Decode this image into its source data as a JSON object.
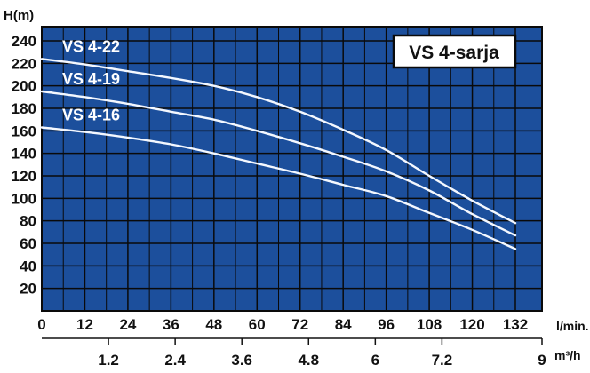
{
  "chart_data": {
    "type": "line",
    "title": "VS 4-sarja",
    "ylabel": "H(m)",
    "xlabel": "l/min.",
    "x2label": "m³/h",
    "ylim": [
      0,
      240
    ],
    "xlim": [
      0,
      132
    ],
    "x2lim": [
      0,
      9
    ],
    "grid": true,
    "y_ticks": [
      "20",
      "40",
      "60",
      "80",
      "100",
      "120",
      "140",
      "160",
      "180",
      "200",
      "220",
      "240"
    ],
    "y_tick_values": [
      20,
      40,
      60,
      80,
      100,
      120,
      140,
      160,
      180,
      200,
      220,
      240
    ],
    "x_ticks": [
      "0",
      "12",
      "24",
      "36",
      "48",
      "60",
      "72",
      "84",
      "96",
      "108",
      "120",
      "132"
    ],
    "x_tick_values": [
      0,
      12,
      24,
      36,
      48,
      60,
      72,
      84,
      96,
      108,
      120,
      132
    ],
    "x2_ticks": [
      "1.2",
      "2.4",
      "3.6",
      "4.8",
      "6",
      "7.2",
      "9"
    ],
    "x2_tick_values": [
      1.2,
      2.4,
      3.6,
      4.8,
      6,
      7.2,
      9
    ],
    "colors": {
      "plot_background": "#1c4f9c",
      "grid": "#0a0a0a",
      "lines": "#f4f8ff",
      "title_box": "#ffffff"
    },
    "series": [
      {
        "name": "VS 4-22",
        "x": [
          0,
          12,
          24,
          36,
          48,
          60,
          72,
          84,
          96,
          108,
          120,
          132
        ],
        "y": [
          224,
          219,
          213,
          207,
          200,
          190,
          177,
          161,
          143,
          120,
          98,
          78
        ]
      },
      {
        "name": "VS 4-19",
        "x": [
          0,
          12,
          24,
          36,
          48,
          60,
          72,
          84,
          96,
          108,
          120,
          132
        ],
        "y": [
          195,
          190,
          184,
          177,
          170,
          160,
          149,
          137,
          124,
          107,
          86,
          67
        ]
      },
      {
        "name": "VS 4-16",
        "x": [
          0,
          12,
          24,
          36,
          48,
          60,
          72,
          84,
          96,
          108,
          120,
          132
        ],
        "y": [
          163,
          159,
          154,
          148,
          140,
          131,
          122,
          112,
          102,
          87,
          72,
          55
        ]
      }
    ]
  }
}
